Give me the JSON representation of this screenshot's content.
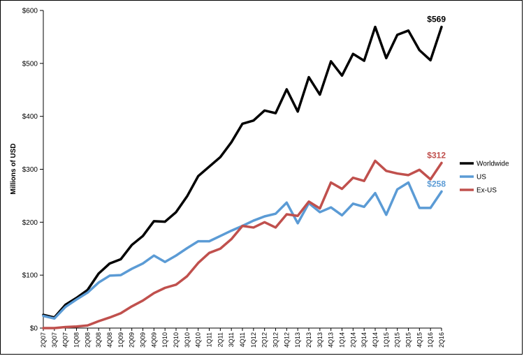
{
  "chart_data": {
    "type": "line",
    "title": "",
    "xlabel": "",
    "ylabel": "Millions of USD",
    "ylim": [
      0,
      600
    ],
    "yticks": [
      0,
      100,
      200,
      300,
      400,
      500,
      600
    ],
    "ytick_labels": [
      "$0",
      "$100",
      "$200",
      "$300",
      "$400",
      "$500",
      "$600"
    ],
    "grid": false,
    "legend_position": "right",
    "categories": [
      "2Q07",
      "3Q07",
      "4Q07",
      "1Q08",
      "2Q08",
      "3Q08",
      "4Q08",
      "1Q09",
      "2Q09",
      "3Q09",
      "4Q09",
      "1Q10",
      "2Q10",
      "3Q10",
      "4Q10",
      "1Q11",
      "2Q11",
      "3Q11",
      "4Q11",
      "1Q12",
      "2Q12",
      "3Q12",
      "4Q12",
      "1Q13",
      "2Q13",
      "3Q13",
      "4Q13",
      "1Q14",
      "2Q14",
      "3Q14",
      "4Q14",
      "1Q15",
      "2Q15",
      "3Q15",
      "4Q15",
      "1Q16",
      "2Q16"
    ],
    "series": [
      {
        "name": "Worldwide",
        "color": "#000000",
        "values": [
          25,
          20,
          44,
          57,
          72,
          103,
          122,
          130,
          157,
          174,
          202,
          201,
          219,
          249,
          287,
          305,
          323,
          351,
          386,
          392,
          411,
          406,
          451,
          409,
          474,
          441,
          504,
          477,
          518,
          505,
          569,
          510,
          554,
          562,
          525,
          506,
          569
        ],
        "end_label": "$569"
      },
      {
        "name": "US",
        "color": "#5b9bd5",
        "values": [
          23,
          18,
          40,
          54,
          67,
          86,
          99,
          100,
          112,
          122,
          137,
          125,
          137,
          151,
          164,
          164,
          174,
          184,
          193,
          203,
          211,
          216,
          237,
          198,
          236,
          219,
          228,
          213,
          235,
          229,
          255,
          214,
          262,
          275,
          227,
          227,
          258
        ],
        "end_label": "$258"
      },
      {
        "name": "Ex-US",
        "color": "#c0504d",
        "values": [
          0,
          0,
          2,
          3,
          5,
          13,
          20,
          28,
          41,
          52,
          66,
          76,
          82,
          98,
          123,
          142,
          150,
          168,
          193,
          190,
          200,
          190,
          215,
          212,
          239,
          226,
          275,
          263,
          284,
          278,
          316,
          297,
          292,
          289,
          299,
          281,
          312
        ],
        "end_label": "$312"
      }
    ]
  }
}
